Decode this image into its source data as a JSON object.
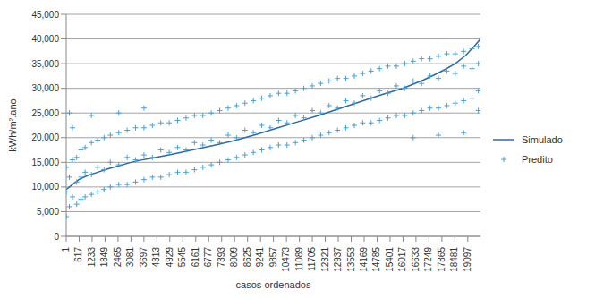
{
  "chart_data": {
    "type": "scatter",
    "x_label": "casos ordenados",
    "y_label": "kWh/m².ano",
    "xlim": [
      1,
      19700
    ],
    "xticks": [
      1,
      617,
      1233,
      1849,
      2465,
      3081,
      3697,
      4313,
      4929,
      5545,
      6161,
      6777,
      7393,
      8009,
      8625,
      9241,
      9857,
      10473,
      11089,
      11705,
      12321,
      12937,
      13553,
      14169,
      14785,
      15401,
      16017,
      16633,
      17249,
      17865,
      18481,
      19097
    ],
    "ylim": [
      0,
      45000
    ],
    "yticks": [
      0,
      {
        "value": 5000,
        "label": "5,000"
      },
      {
        "value": 10000,
        "label": "10,000"
      },
      {
        "value": 15000,
        "label": "15,000"
      },
      {
        "value": 20000,
        "label": "20,000"
      },
      {
        "value": 25000,
        "label": "25,000"
      },
      {
        "value": 30000,
        "label": "30,000"
      },
      {
        "value": 35000,
        "label": "35,000"
      },
      {
        "value": 40000,
        "label": "40,000"
      },
      {
        "value": 45000,
        "label": "45,000"
      }
    ],
    "grid": true,
    "legend": "right",
    "series": [
      {
        "name": "Simulado",
        "type": "line",
        "color": "#2e6a9e",
        "line_style": "solid",
        "x": [
          1,
          300,
          600,
          1000,
          1500,
          2000,
          2500,
          3000,
          3500,
          4000,
          5000,
          6000,
          7000,
          8000,
          9000,
          10000,
          11000,
          12000,
          13000,
          14000,
          15000,
          16000,
          17000,
          17500,
          18000,
          18500,
          19000,
          19400,
          19700
        ],
        "values": [
          9500,
          10500,
          11500,
          12300,
          13000,
          13700,
          14300,
          14900,
          15400,
          15800,
          16600,
          17500,
          18400,
          19400,
          20600,
          21900,
          23200,
          24500,
          25900,
          27300,
          28700,
          30000,
          31700,
          32700,
          33800,
          35000,
          36700,
          38500,
          40000
        ]
      },
      {
        "name": "Predito",
        "type": "scatter",
        "color": "#4a9fd8",
        "marker": "plus",
        "x": [
          1,
          1,
          1,
          150,
          150,
          150,
          300,
          300,
          300,
          500,
          500,
          500,
          700,
          700,
          700,
          900,
          900,
          900,
          1200,
          1200,
          1200,
          1200,
          1500,
          1500,
          1500,
          1800,
          1800,
          1800,
          2100,
          2100,
          2100,
          2500,
          2500,
          2500,
          2500,
          2900,
          2900,
          2900,
          3300,
          3300,
          3300,
          3700,
          3700,
          3700,
          3700,
          4100,
          4100,
          4100,
          4500,
          4500,
          4500,
          4900,
          4900,
          4900,
          5300,
          5300,
          5300,
          5700,
          5700,
          5700,
          6100,
          6100,
          6100,
          6500,
          6500,
          6500,
          6900,
          6900,
          6900,
          7300,
          7300,
          7300,
          7700,
          7700,
          7700,
          8100,
          8100,
          8100,
          8500,
          8500,
          8500,
          8900,
          8900,
          8900,
          9300,
          9300,
          9300,
          9700,
          9700,
          9700,
          10100,
          10100,
          10100,
          10500,
          10500,
          10500,
          10900,
          10900,
          10900,
          11300,
          11300,
          11300,
          11700,
          11700,
          11700,
          12100,
          12100,
          12100,
          12500,
          12500,
          12500,
          12900,
          12900,
          12900,
          13300,
          13300,
          13300,
          13700,
          13700,
          13700,
          14100,
          14100,
          14100,
          14500,
          14500,
          14500,
          14900,
          14900,
          14900,
          15300,
          15300,
          15300,
          15700,
          15700,
          15700,
          16100,
          16100,
          16100,
          16500,
          16500,
          16500,
          16500,
          16900,
          16900,
          16900,
          17300,
          17300,
          17300,
          17700,
          17700,
          17700,
          17700,
          18100,
          18100,
          18100,
          18500,
          18500,
          18500,
          18900,
          18900,
          18900,
          18900,
          19300,
          19300,
          19300,
          19600,
          19600,
          19600,
          19600
        ],
        "values": [
          4000,
          9000,
          14000,
          25000,
          12000,
          6000,
          15500,
          8000,
          22000,
          16000,
          11000,
          6500,
          17500,
          12000,
          7500,
          18000,
          13000,
          8000,
          19000,
          12500,
          8500,
          24500,
          19500,
          14000,
          9000,
          20000,
          13500,
          9500,
          20500,
          15000,
          10000,
          21000,
          14500,
          10500,
          25000,
          21500,
          16000,
          10500,
          22000,
          15500,
          11000,
          22000,
          16500,
          11500,
          26000,
          22500,
          16000,
          12000,
          23000,
          17500,
          12000,
          23000,
          17000,
          12500,
          23500,
          18000,
          13000,
          24000,
          17500,
          13000,
          24500,
          19000,
          13500,
          24500,
          18500,
          14000,
          25000,
          19500,
          14500,
          25500,
          19000,
          15000,
          26000,
          20500,
          15500,
          26500,
          20000,
          16000,
          27000,
          21500,
          16500,
          27500,
          21000,
          17000,
          28000,
          22500,
          17500,
          28500,
          22000,
          18000,
          29000,
          23500,
          18500,
          29000,
          23000,
          18500,
          29500,
          24500,
          19000,
          30000,
          24000,
          19500,
          30500,
          25500,
          20000,
          31000,
          25000,
          20500,
          31500,
          26500,
          21000,
          32000,
          26000,
          21500,
          32000,
          27500,
          22000,
          32500,
          27000,
          22500,
          33000,
          28500,
          23000,
          33500,
          28000,
          23000,
          34000,
          29500,
          23500,
          34500,
          29000,
          24000,
          34500,
          30500,
          24500,
          35000,
          30000,
          24500,
          35500,
          31500,
          25000,
          20000,
          36000,
          31000,
          25500,
          36000,
          32500,
          26000,
          36500,
          32000,
          26000,
          20500,
          37000,
          33500,
          26500,
          37000,
          33000,
          27000,
          37500,
          34500,
          27500,
          21000,
          38000,
          34000,
          28000,
          38500,
          35000,
          29500,
          25500
        ]
      }
    ]
  }
}
